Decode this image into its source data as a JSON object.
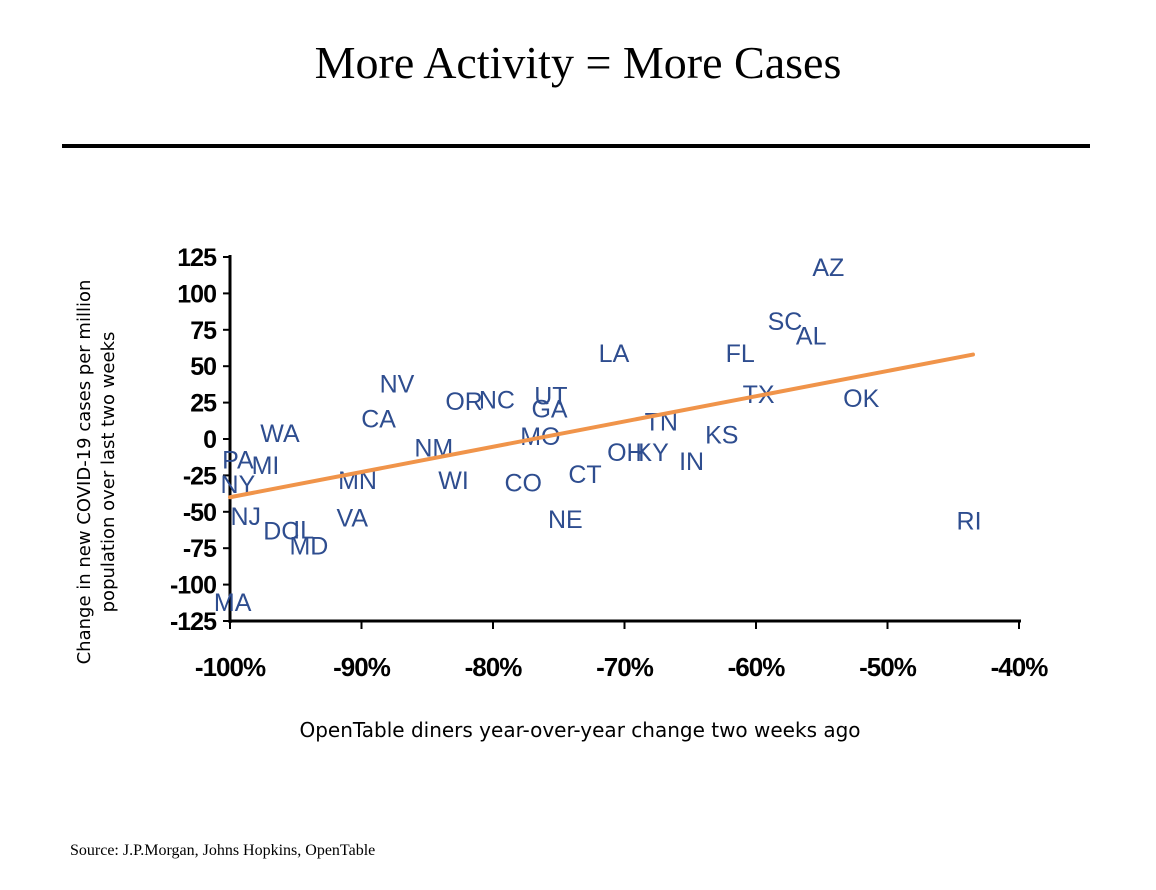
{
  "slide": {
    "title": "More Activity = More Cases",
    "source": "Source: J.P.Morgan, Johns Hopkins, OpenTable"
  },
  "chart_data": {
    "type": "scatter",
    "xlabel": "OpenTable diners year-over-year change two weeks ago",
    "ylabel": "Change in new COVID-19 cases per million population over last two weeks",
    "xlim": [
      -1.0,
      -0.4
    ],
    "ylim": [
      -125,
      125
    ],
    "x_ticks": [
      "-100%",
      "-90%",
      "-80%",
      "-70%",
      "-60%",
      "-50%",
      "-40%"
    ],
    "y_ticks": [
      "125",
      "100",
      "75",
      "50",
      "25",
      "0",
      "-25",
      "-50",
      "-75",
      "-100",
      "-125"
    ],
    "grid": false,
    "label_color": "#2e4d8f",
    "trend_color": "#f0944a",
    "trendline": {
      "x": [
        -1.0,
        -0.435
      ],
      "y": [
        -40,
        58
      ]
    },
    "points": [
      {
        "label": "AZ",
        "x": -0.545,
        "y": 118
      },
      {
        "label": "SC",
        "x": -0.578,
        "y": 81
      },
      {
        "label": "AL",
        "x": -0.558,
        "y": 71
      },
      {
        "label": "FL",
        "x": -0.612,
        "y": 59
      },
      {
        "label": "LA",
        "x": -0.708,
        "y": 59
      },
      {
        "label": "TX",
        "x": -0.598,
        "y": 31
      },
      {
        "label": "OK",
        "x": -0.52,
        "y": 28
      },
      {
        "label": "NV",
        "x": -0.873,
        "y": 38
      },
      {
        "label": "OR",
        "x": -0.822,
        "y": 26
      },
      {
        "label": "NC",
        "x": -0.797,
        "y": 27
      },
      {
        "label": "UT",
        "x": -0.756,
        "y": 30
      },
      {
        "label": "GA",
        "x": -0.757,
        "y": 21
      },
      {
        "label": "CA",
        "x": -0.887,
        "y": 14
      },
      {
        "label": "TN",
        "x": -0.672,
        "y": 12
      },
      {
        "label": "KS",
        "x": -0.626,
        "y": 3
      },
      {
        "label": "WA",
        "x": -0.962,
        "y": 4
      },
      {
        "label": "MO",
        "x": -0.764,
        "y": 2
      },
      {
        "label": "NM",
        "x": -0.845,
        "y": -6
      },
      {
        "label": "OH",
        "x": -0.699,
        "y": -9
      },
      {
        "label": "KY",
        "x": -0.679,
        "y": -9
      },
      {
        "label": "IN",
        "x": -0.649,
        "y": -15
      },
      {
        "label": "PA",
        "x": -0.994,
        "y": -14
      },
      {
        "label": "MI",
        "x": -0.973,
        "y": -18
      },
      {
        "label": "CT",
        "x": -0.73,
        "y": -24
      },
      {
        "label": "MN",
        "x": -0.903,
        "y": -28
      },
      {
        "label": "WI",
        "x": -0.83,
        "y": -28
      },
      {
        "label": "CO",
        "x": -0.777,
        "y": -30
      },
      {
        "label": "NY",
        "x": -0.994,
        "y": -31
      },
      {
        "label": "NJ",
        "x": -0.988,
        "y": -53
      },
      {
        "label": "VA",
        "x": -0.907,
        "y": -54
      },
      {
        "label": "NE",
        "x": -0.745,
        "y": -55
      },
      {
        "label": "RI",
        "x": -0.438,
        "y": -56
      },
      {
        "label": "DC",
        "x": -0.961,
        "y": -63
      },
      {
        "label": "IL",
        "x": -0.944,
        "y": -62
      },
      {
        "label": "MD",
        "x": -0.94,
        "y": -73
      },
      {
        "label": "MA",
        "x": -0.998,
        "y": -112
      }
    ]
  }
}
